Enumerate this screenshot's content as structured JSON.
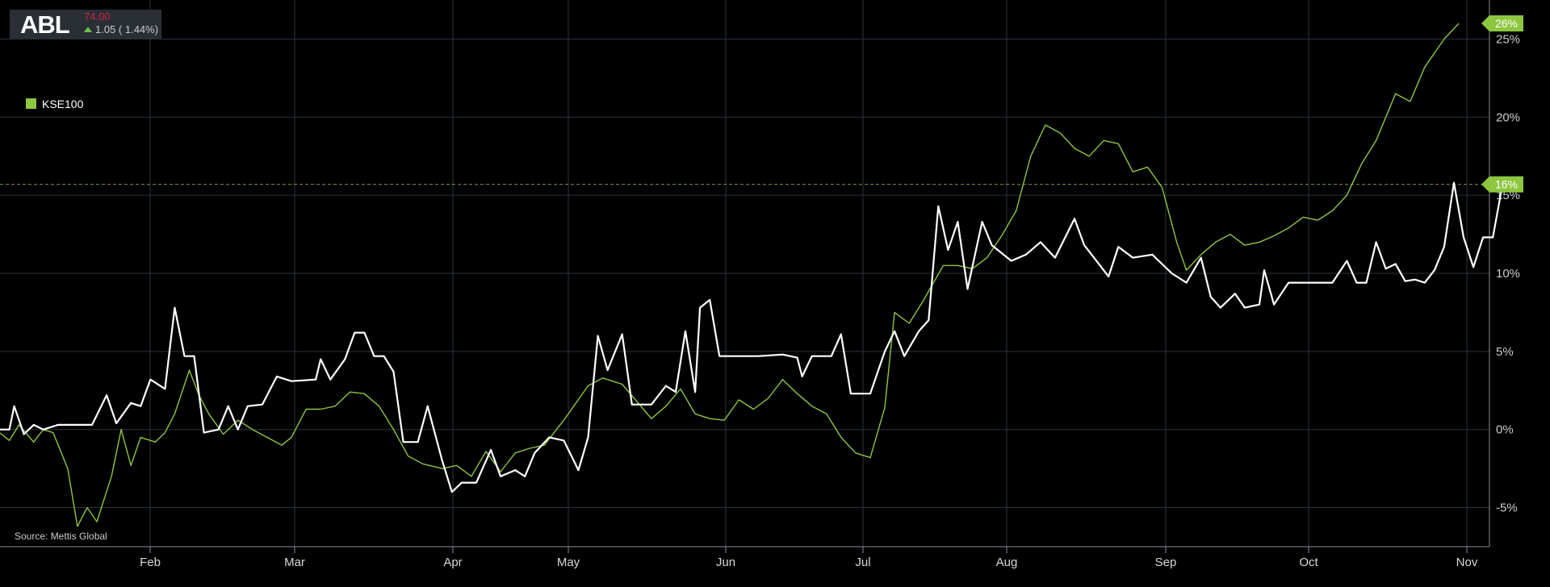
{
  "ticker": {
    "symbol": "ABL",
    "price": "74.00",
    "change": "1.05 ( 1.44%)"
  },
  "legend": {
    "label": "KSE100",
    "color": "#8dc63f"
  },
  "source": "Source: Mettis Global",
  "colors": {
    "background": "#000000",
    "grid": "#2b3340",
    "kse100": "#8dc63f",
    "abl": "#ffffff",
    "price_down": "#d1243a",
    "change_up": "#6ec04a"
  },
  "chart_data": {
    "type": "line",
    "title": "",
    "xlabel": "",
    "ylabel": "",
    "x_ticks": [
      "Feb",
      "Mar",
      "Apr",
      "May",
      "Jun",
      "Jul",
      "Aug",
      "Sep",
      "Oct",
      "Nov"
    ],
    "y_ticks": [
      "25%",
      "20%",
      "15%",
      "10%",
      "5%",
      "0%",
      "-5%"
    ],
    "ylim": [
      -7.5,
      27.5
    ],
    "y_axis_position": "right",
    "grid": true,
    "legend_position": "top-left",
    "end_labels": [
      {
        "series": "KSE100",
        "text": "26%"
      },
      {
        "series": "ABL",
        "text": "16%"
      }
    ],
    "reference_line": {
      "series": "ABL",
      "value": 15.7
    },
    "series": [
      {
        "name": "KSE100",
        "color": "#8dc63f",
        "points": [
          [
            "2024-01-01",
            -0.2
          ],
          [
            "2024-01-03",
            -0.7
          ],
          [
            "2024-01-05",
            0.3
          ],
          [
            "2024-01-08",
            -0.8
          ],
          [
            "2024-01-10",
            0.0
          ],
          [
            "2024-01-12",
            -0.2
          ],
          [
            "2024-01-15",
            -2.5
          ],
          [
            "2024-01-17",
            -6.2
          ],
          [
            "2024-01-19",
            -5.0
          ],
          [
            "2024-01-21",
            -5.9
          ],
          [
            "2024-01-24",
            -3.0
          ],
          [
            "2024-01-26",
            0.0
          ],
          [
            "2024-01-28",
            -2.3
          ],
          [
            "2024-01-30",
            -0.5
          ],
          [
            "2024-02-02",
            -0.8
          ],
          [
            "2024-02-04",
            -0.2
          ],
          [
            "2024-02-06",
            1.0
          ],
          [
            "2024-02-09",
            3.8
          ],
          [
            "2024-02-11",
            2.2
          ],
          [
            "2024-02-13",
            1.0
          ],
          [
            "2024-02-16",
            -0.3
          ],
          [
            "2024-02-19",
            0.6
          ],
          [
            "2024-02-22",
            0.0
          ],
          [
            "2024-02-25",
            -0.5
          ],
          [
            "2024-02-28",
            -1.0
          ],
          [
            "2024-03-01",
            -0.5
          ],
          [
            "2024-03-04",
            1.3
          ],
          [
            "2024-03-07",
            1.3
          ],
          [
            "2024-03-10",
            1.5
          ],
          [
            "2024-03-13",
            2.4
          ],
          [
            "2024-03-16",
            2.3
          ],
          [
            "2024-03-19",
            1.5
          ],
          [
            "2024-03-22",
            0.0
          ],
          [
            "2024-03-25",
            -1.7
          ],
          [
            "2024-03-28",
            -2.2
          ],
          [
            "2024-04-01",
            -2.5
          ],
          [
            "2024-04-04",
            -2.3
          ],
          [
            "2024-04-07",
            -3.0
          ],
          [
            "2024-04-10",
            -1.4
          ],
          [
            "2024-04-13",
            -2.7
          ],
          [
            "2024-04-16",
            -1.5
          ],
          [
            "2024-04-19",
            -1.2
          ],
          [
            "2024-04-22",
            -1.0
          ],
          [
            "2024-04-26",
            0.6
          ],
          [
            "2024-05-01",
            2.8
          ],
          [
            "2024-05-04",
            3.3
          ],
          [
            "2024-05-08",
            2.9
          ],
          [
            "2024-05-11",
            1.8
          ],
          [
            "2024-05-14",
            0.7
          ],
          [
            "2024-05-17",
            1.5
          ],
          [
            "2024-05-20",
            2.6
          ],
          [
            "2024-05-23",
            1.0
          ],
          [
            "2024-05-26",
            0.7
          ],
          [
            "2024-05-29",
            0.6
          ],
          [
            "2024-06-01",
            1.9
          ],
          [
            "2024-06-04",
            1.3
          ],
          [
            "2024-06-07",
            2.0
          ],
          [
            "2024-06-10",
            3.2
          ],
          [
            "2024-06-13",
            2.3
          ],
          [
            "2024-06-16",
            1.5
          ],
          [
            "2024-06-19",
            1.0
          ],
          [
            "2024-06-22",
            -0.5
          ],
          [
            "2024-06-25",
            -1.5
          ],
          [
            "2024-06-28",
            -1.8
          ],
          [
            "2024-07-01",
            1.4
          ],
          [
            "2024-07-03",
            7.5
          ],
          [
            "2024-07-06",
            6.8
          ],
          [
            "2024-07-09",
            8.3
          ],
          [
            "2024-07-13",
            10.5
          ],
          [
            "2024-07-16",
            10.5
          ],
          [
            "2024-07-19",
            10.3
          ],
          [
            "2024-07-22",
            11.0
          ],
          [
            "2024-07-25",
            12.4
          ],
          [
            "2024-07-28",
            14.0
          ],
          [
            "2024-07-31",
            17.5
          ],
          [
            "2024-08-03",
            19.5
          ],
          [
            "2024-08-06",
            19.0
          ],
          [
            "2024-08-09",
            18.0
          ],
          [
            "2024-08-12",
            17.5
          ],
          [
            "2024-08-15",
            18.5
          ],
          [
            "2024-08-18",
            18.3
          ],
          [
            "2024-08-21",
            16.5
          ],
          [
            "2024-08-24",
            16.8
          ],
          [
            "2024-08-27",
            15.5
          ],
          [
            "2024-08-30",
            12.0
          ],
          [
            "2024-09-01",
            10.2
          ],
          [
            "2024-09-04",
            11.2
          ],
          [
            "2024-09-07",
            12.0
          ],
          [
            "2024-09-10",
            12.5
          ],
          [
            "2024-09-13",
            11.8
          ],
          [
            "2024-09-16",
            12.0
          ],
          [
            "2024-09-19",
            12.4
          ],
          [
            "2024-09-22",
            12.9
          ],
          [
            "2024-09-25",
            13.6
          ],
          [
            "2024-09-28",
            13.4
          ],
          [
            "2024-10-01",
            14.0
          ],
          [
            "2024-10-04",
            15.0
          ],
          [
            "2024-10-07",
            17.0
          ],
          [
            "2024-10-10",
            18.5
          ],
          [
            "2024-10-14",
            21.5
          ],
          [
            "2024-10-17",
            21.0
          ],
          [
            "2024-10-20",
            23.2
          ],
          [
            "2024-10-24",
            25.0
          ],
          [
            "2024-10-27",
            26.0
          ]
        ]
      },
      {
        "name": "ABL",
        "color": "#ffffff",
        "points": [
          [
            "2024-01-01",
            0.0
          ],
          [
            "2024-01-03",
            0.0
          ],
          [
            "2024-01-04",
            1.5
          ],
          [
            "2024-01-06",
            -0.3
          ],
          [
            "2024-01-08",
            0.3
          ],
          [
            "2024-01-10",
            0.0
          ],
          [
            "2024-01-13",
            0.3
          ],
          [
            "2024-01-20",
            0.3
          ],
          [
            "2024-01-23",
            2.2
          ],
          [
            "2024-01-25",
            0.4
          ],
          [
            "2024-01-28",
            1.7
          ],
          [
            "2024-01-30",
            1.5
          ],
          [
            "2024-02-01",
            3.2
          ],
          [
            "2024-02-04",
            2.6
          ],
          [
            "2024-02-06",
            7.8
          ],
          [
            "2024-02-08",
            4.7
          ],
          [
            "2024-02-10",
            4.7
          ],
          [
            "2024-02-12",
            -0.2
          ],
          [
            "2024-02-15",
            0.0
          ],
          [
            "2024-02-17",
            1.5
          ],
          [
            "2024-02-19",
            0.0
          ],
          [
            "2024-02-21",
            1.5
          ],
          [
            "2024-02-24",
            1.6
          ],
          [
            "2024-02-27",
            3.4
          ],
          [
            "2024-03-01",
            3.1
          ],
          [
            "2024-03-06",
            3.2
          ],
          [
            "2024-03-07",
            4.5
          ],
          [
            "2024-03-09",
            3.2
          ],
          [
            "2024-03-12",
            4.5
          ],
          [
            "2024-03-14",
            6.2
          ],
          [
            "2024-03-16",
            6.2
          ],
          [
            "2024-03-18",
            4.7
          ],
          [
            "2024-03-20",
            4.7
          ],
          [
            "2024-03-22",
            3.7
          ],
          [
            "2024-03-24",
            -0.8
          ],
          [
            "2024-03-27",
            -0.8
          ],
          [
            "2024-03-29",
            1.5
          ],
          [
            "2024-04-01",
            -2.0
          ],
          [
            "2024-04-03",
            -4.0
          ],
          [
            "2024-04-05",
            -3.4
          ],
          [
            "2024-04-08",
            -3.4
          ],
          [
            "2024-04-11",
            -1.3
          ],
          [
            "2024-04-13",
            -3.0
          ],
          [
            "2024-04-16",
            -2.6
          ],
          [
            "2024-04-18",
            -3.0
          ],
          [
            "2024-04-20",
            -1.5
          ],
          [
            "2024-04-23",
            -0.5
          ],
          [
            "2024-04-26",
            -0.7
          ],
          [
            "2024-04-29",
            -2.6
          ],
          [
            "2024-05-01",
            -0.5
          ],
          [
            "2024-05-03",
            6.0
          ],
          [
            "2024-05-05",
            3.8
          ],
          [
            "2024-05-08",
            6.1
          ],
          [
            "2024-05-10",
            1.6
          ],
          [
            "2024-05-14",
            1.6
          ],
          [
            "2024-05-17",
            2.8
          ],
          [
            "2024-05-19",
            2.4
          ],
          [
            "2024-05-21",
            6.3
          ],
          [
            "2024-05-23",
            2.4
          ],
          [
            "2024-05-24",
            7.8
          ],
          [
            "2024-05-26",
            8.3
          ],
          [
            "2024-05-28",
            4.7
          ],
          [
            "2024-06-05",
            4.7
          ],
          [
            "2024-06-10",
            4.8
          ],
          [
            "2024-06-13",
            4.6
          ],
          [
            "2024-06-14",
            3.4
          ],
          [
            "2024-06-16",
            4.7
          ],
          [
            "2024-06-20",
            4.7
          ],
          [
            "2024-06-22",
            6.1
          ],
          [
            "2024-06-24",
            2.3
          ],
          [
            "2024-06-28",
            2.3
          ],
          [
            "2024-07-01",
            5.0
          ],
          [
            "2024-07-03",
            6.3
          ],
          [
            "2024-07-05",
            4.7
          ],
          [
            "2024-07-08",
            6.3
          ],
          [
            "2024-07-10",
            7.0
          ],
          [
            "2024-07-12",
            14.3
          ],
          [
            "2024-07-14",
            11.5
          ],
          [
            "2024-07-16",
            13.3
          ],
          [
            "2024-07-18",
            9.0
          ],
          [
            "2024-07-21",
            13.3
          ],
          [
            "2024-07-23",
            11.8
          ],
          [
            "2024-07-27",
            10.8
          ],
          [
            "2024-07-30",
            11.2
          ],
          [
            "2024-08-02",
            12.0
          ],
          [
            "2024-08-05",
            11.0
          ],
          [
            "2024-08-09",
            13.5
          ],
          [
            "2024-08-11",
            11.8
          ],
          [
            "2024-08-16",
            9.8
          ],
          [
            "2024-08-18",
            11.7
          ],
          [
            "2024-08-21",
            11.0
          ],
          [
            "2024-08-25",
            11.2
          ],
          [
            "2024-08-29",
            10.0
          ],
          [
            "2024-09-01",
            9.4
          ],
          [
            "2024-09-04",
            11.0
          ],
          [
            "2024-09-06",
            8.5
          ],
          [
            "2024-09-08",
            7.8
          ],
          [
            "2024-09-11",
            8.7
          ],
          [
            "2024-09-13",
            7.8
          ],
          [
            "2024-09-16",
            8.0
          ],
          [
            "2024-09-17",
            10.2
          ],
          [
            "2024-09-19",
            8.0
          ],
          [
            "2024-09-22",
            9.4
          ],
          [
            "2024-09-30",
            9.4
          ],
          [
            "2024-10-01",
            9.4
          ],
          [
            "2024-10-04",
            10.8
          ],
          [
            "2024-10-06",
            9.4
          ],
          [
            "2024-10-08",
            9.4
          ],
          [
            "2024-10-10",
            12.0
          ],
          [
            "2024-10-12",
            10.3
          ],
          [
            "2024-10-14",
            10.6
          ],
          [
            "2024-10-16",
            9.5
          ],
          [
            "2024-10-18",
            9.6
          ],
          [
            "2024-10-20",
            9.4
          ],
          [
            "2024-10-22",
            10.2
          ],
          [
            "2024-10-24",
            11.7
          ],
          [
            "2024-10-26",
            15.8
          ],
          [
            "2024-10-28",
            12.3
          ],
          [
            "2024-10-30",
            10.4
          ],
          [
            "2024-11-01",
            12.3
          ],
          [
            "2024-11-03",
            12.3
          ],
          [
            "2024-11-05",
            15.7
          ]
        ]
      }
    ]
  }
}
